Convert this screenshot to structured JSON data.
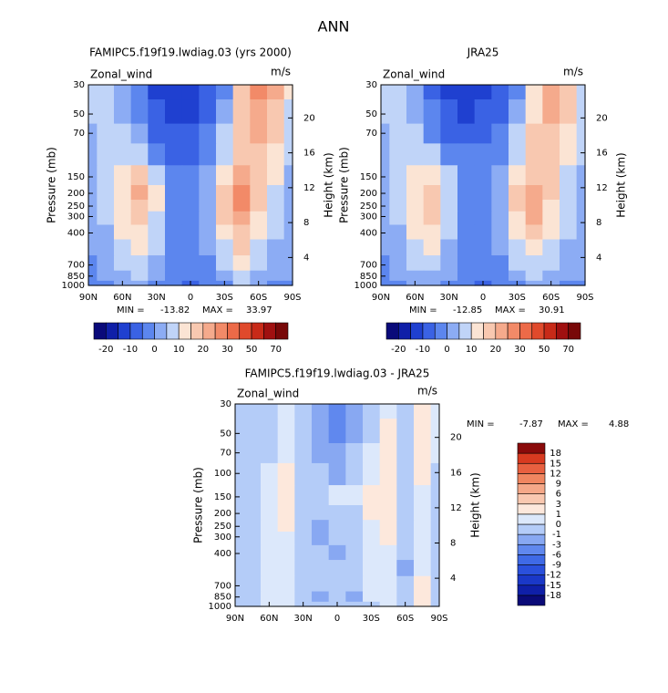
{
  "title": "ANN",
  "chart_data": [
    {
      "type": "contour",
      "title": "FAMIPC5.f19f19.lwdiag.03 (yrs 2000)",
      "left_label": "Zonal_wind",
      "right_label": "m/s",
      "ylabel": "Pressure (mb)",
      "y2label": "Height (km)",
      "min_label": "MIN =",
      "min": -13.82,
      "max_label": "MAX =",
      "max": 33.97,
      "x": [
        90,
        75,
        60,
        45,
        30,
        15,
        0,
        -15,
        -30,
        -45,
        -60,
        -75,
        -90
      ],
      "y": [
        30,
        50,
        70,
        100,
        150,
        200,
        250,
        300,
        400,
        500,
        700,
        850,
        1000
      ],
      "z": [
        [
          5,
          5,
          2,
          -5,
          -12,
          -15,
          -14,
          -10,
          -2,
          15,
          25,
          20,
          10
        ],
        [
          5,
          6,
          3,
          -3,
          -10,
          -12,
          -12,
          -8,
          2,
          15,
          22,
          18,
          8
        ],
        [
          4,
          7,
          5,
          0,
          -6,
          -9,
          -9,
          -5,
          5,
          16,
          20,
          15,
          6
        ],
        [
          3,
          8,
          9,
          6,
          -2,
          -6,
          -6,
          -2,
          8,
          17,
          18,
          12,
          5
        ],
        [
          3,
          8,
          14,
          15,
          5,
          -3,
          -4,
          2,
          14,
          20,
          16,
          10,
          4
        ],
        [
          2,
          7,
          14,
          20,
          10,
          -2,
          -4,
          3,
          18,
          28,
          16,
          8,
          3
        ],
        [
          2,
          6,
          13,
          19,
          10,
          -2,
          -4,
          3,
          17,
          27,
          15,
          7,
          2
        ],
        [
          1,
          5,
          12,
          17,
          9,
          -2,
          -3,
          2,
          15,
          24,
          14,
          6,
          2
        ],
        [
          1,
          4,
          10,
          13,
          7,
          -2,
          -3,
          1,
          12,
          19,
          11,
          5,
          1
        ],
        [
          0,
          3,
          8,
          11,
          5,
          -2,
          -3,
          0,
          9,
          15,
          9,
          4,
          1
        ],
        [
          -1,
          2,
          5,
          7,
          2,
          -2,
          -4,
          -2,
          5,
          10,
          6,
          2,
          0
        ],
        [
          -2,
          1,
          3,
          5,
          0,
          -4,
          -5,
          -4,
          2,
          7,
          4,
          0,
          0
        ],
        [
          -3,
          -1,
          1,
          3,
          -2,
          -5,
          -6,
          -5,
          -1,
          5,
          3,
          -2,
          -2
        ]
      ],
      "xlim": [
        90,
        -90
      ],
      "xticks": [
        {
          "value": 90,
          "label": "90N"
        },
        {
          "value": 60,
          "label": "60N"
        },
        {
          "value": 30,
          "label": "30N"
        },
        0,
        {
          "value": -30,
          "label": "30S"
        },
        {
          "value": -60,
          "label": "60S"
        },
        {
          "value": -90,
          "label": "90S"
        }
      ],
      "ylim": [
        1000,
        30
      ],
      "ylog": true,
      "yticks": [
        30,
        50,
        70,
        150,
        200,
        250,
        300,
        400,
        700,
        850,
        1000
      ],
      "y2lim": [
        0.8,
        23.8
      ],
      "y2ticks": [
        4,
        8,
        12,
        16,
        20
      ],
      "colorbar": {
        "orientation": "horizontal",
        "levels": [
          -20,
          -15,
          -10,
          -5,
          0,
          5,
          10,
          15,
          20,
          25,
          30,
          40,
          50,
          60,
          70
        ],
        "ticks": [
          -20,
          -10,
          0,
          10,
          20,
          30,
          50,
          70
        ],
        "colors": [
          "#0a0a7a",
          "#0f1fa8",
          "#1f40d0",
          "#3a62e4",
          "#5c86ee",
          "#8cacf4",
          "#c0d4f8",
          "#fbe4d4",
          "#f8c8b0",
          "#f5aa8c",
          "#f28a68",
          "#ec6a48",
          "#e04a2c",
          "#c82a18",
          "#a01010",
          "#780808"
        ]
      }
    },
    {
      "type": "contour",
      "title": "JRA25",
      "left_label": "Zonal_wind",
      "right_label": "m/s",
      "ylabel": "Pressure (mb)",
      "y2label": "Height (km)",
      "min_label": "MIN =",
      "min": -12.85,
      "max_label": "MAX =",
      "max": 30.91,
      "x": [
        90,
        75,
        60,
        45,
        30,
        15,
        0,
        -15,
        -30,
        -45,
        -60,
        -75,
        -90
      ],
      "y": [
        30,
        50,
        70,
        100,
        150,
        200,
        250,
        300,
        400,
        500,
        700,
        850,
        1000
      ],
      "z": [
        [
          5,
          5,
          2,
          -6,
          -12,
          -13,
          -11,
          -8,
          -2,
          14,
          23,
          18,
          8
        ],
        [
          5,
          6,
          3,
          -4,
          -10,
          -11,
          -9,
          -6,
          2,
          14,
          21,
          16,
          7
        ],
        [
          4,
          7,
          5,
          -1,
          -6,
          -8,
          -7,
          -4,
          5,
          15,
          19,
          14,
          6
        ],
        [
          3,
          8,
          9,
          5,
          -2,
          -5,
          -5,
          -1,
          8,
          16,
          17,
          11,
          5
        ],
        [
          3,
          8,
          14,
          14,
          5,
          -3,
          -3,
          2,
          13,
          19,
          15,
          9,
          4
        ],
        [
          2,
          7,
          14,
          19,
          9,
          -2,
          -3,
          3,
          17,
          24,
          15,
          7,
          3
        ],
        [
          2,
          6,
          13,
          18,
          9,
          -2,
          -3,
          3,
          16,
          23,
          14,
          6,
          2
        ],
        [
          1,
          5,
          12,
          16,
          8,
          -2,
          -3,
          2,
          14,
          21,
          13,
          6,
          2
        ],
        [
          1,
          4,
          10,
          12,
          6,
          -2,
          -3,
          1,
          11,
          17,
          10,
          5,
          1
        ],
        [
          0,
          3,
          8,
          10,
          4,
          -2,
          -3,
          0,
          8,
          14,
          8,
          4,
          1
        ],
        [
          -1,
          2,
          5,
          6,
          2,
          -2,
          -4,
          -2,
          5,
          9,
          5,
          2,
          0
        ],
        [
          -2,
          1,
          3,
          4,
          0,
          -4,
          -5,
          -4,
          2,
          6,
          4,
          0,
          0
        ],
        [
          -3,
          -1,
          1,
          2,
          -2,
          -5,
          -6,
          -5,
          -1,
          4,
          2,
          -2,
          -2
        ]
      ],
      "xlim": [
        90,
        -90
      ],
      "xticks": [
        {
          "value": 90,
          "label": "90N"
        },
        {
          "value": 60,
          "label": "60N"
        },
        {
          "value": 30,
          "label": "30N"
        },
        0,
        {
          "value": -30,
          "label": "30S"
        },
        {
          "value": -60,
          "label": "60S"
        },
        {
          "value": -90,
          "label": "90S"
        }
      ],
      "ylim": [
        1000,
        30
      ],
      "ylog": true,
      "yticks": [
        30,
        50,
        70,
        150,
        200,
        250,
        300,
        400,
        700,
        850,
        1000
      ],
      "y2lim": [
        0.8,
        23.8
      ],
      "y2ticks": [
        4,
        8,
        12,
        16,
        20
      ],
      "colorbar": {
        "orientation": "horizontal",
        "levels": [
          -20,
          -15,
          -10,
          -5,
          0,
          5,
          10,
          15,
          20,
          25,
          30,
          40,
          50,
          60,
          70
        ],
        "ticks": [
          -20,
          -10,
          0,
          10,
          20,
          30,
          50,
          70
        ],
        "colors": [
          "#0a0a7a",
          "#0f1fa8",
          "#1f40d0",
          "#3a62e4",
          "#5c86ee",
          "#8cacf4",
          "#c0d4f8",
          "#fbe4d4",
          "#f8c8b0",
          "#f5aa8c",
          "#f28a68",
          "#ec6a48",
          "#e04a2c",
          "#c82a18",
          "#a01010",
          "#780808"
        ]
      }
    },
    {
      "type": "contour",
      "title": "FAMIPC5.f19f19.lwdiag.03 - JRA25",
      "left_label": "Zonal_wind",
      "right_label": "m/s",
      "ylabel": "Pressure (mb)",
      "y2label": "Height (km)",
      "min_label": "MIN =",
      "min": -7.87,
      "max_label": "MAX =",
      "max": 4.88,
      "x": [
        90,
        75,
        60,
        45,
        30,
        15,
        0,
        -15,
        -30,
        -45,
        -60,
        -75,
        -90
      ],
      "y": [
        30,
        50,
        70,
        100,
        150,
        200,
        250,
        300,
        400,
        500,
        700,
        850,
        1000
      ],
      "z": [
        [
          -0.5,
          -0.5,
          -0.5,
          0.5,
          -0.5,
          -2,
          -4,
          -2,
          -0.5,
          0.5,
          -0.5,
          2,
          0.5
        ],
        [
          -0.5,
          -0.5,
          -0.5,
          0.5,
          -0.5,
          -2,
          -4,
          -2,
          -0.5,
          2,
          -0.5,
          2,
          0.5
        ],
        [
          -0.5,
          -0.5,
          -0.5,
          0.5,
          -0.5,
          -2,
          -2,
          -0.5,
          0.5,
          2,
          -0.5,
          2,
          0.5
        ],
        [
          -0.5,
          -0.5,
          0.5,
          2,
          -0.5,
          -0.5,
          -2,
          -0.5,
          0.5,
          2,
          -0.5,
          2,
          -0.5
        ],
        [
          -0.5,
          -0.5,
          0.5,
          2,
          -0.5,
          -0.5,
          0.5,
          0.5,
          2,
          2,
          -0.5,
          0.5,
          -0.5
        ],
        [
          -0.5,
          -0.5,
          0.5,
          2,
          -0.5,
          -0.5,
          -0.5,
          -0.5,
          2,
          2,
          -0.5,
          0.5,
          -0.5
        ],
        [
          -0.5,
          -0.5,
          0.5,
          2,
          -0.5,
          -2,
          -0.5,
          -0.5,
          0.5,
          2,
          -0.5,
          0.5,
          -0.5
        ],
        [
          -0.5,
          -0.5,
          0.5,
          0.5,
          -0.5,
          -2,
          -0.5,
          -0.5,
          0.5,
          2,
          -0.5,
          0.5,
          -0.5
        ],
        [
          -0.5,
          -0.5,
          0.5,
          0.5,
          -0.5,
          -0.5,
          -2,
          -0.5,
          0.5,
          0.5,
          -0.5,
          0.5,
          -0.5
        ],
        [
          -0.5,
          -0.5,
          0.5,
          0.5,
          -0.5,
          -0.5,
          -0.5,
          -0.5,
          0.5,
          0.5,
          -2,
          0.5,
          -0.5
        ],
        [
          -0.5,
          -0.5,
          0.5,
          0.5,
          -0.5,
          -0.5,
          -0.5,
          -0.5,
          0.5,
          0.5,
          -0.5,
          2,
          -0.5
        ],
        [
          -0.5,
          -0.5,
          0.5,
          0.5,
          -0.5,
          -2,
          -0.5,
          -2,
          0.5,
          0.5,
          -0.5,
          2,
          -0.5
        ],
        [
          -0.5,
          -0.5,
          0.5,
          0.5,
          -0.5,
          -0.5,
          -0.5,
          -0.5,
          -0.5,
          0.5,
          -0.5,
          2,
          -0.5
        ]
      ],
      "xlim": [
        90,
        -90
      ],
      "xticks": [
        {
          "value": 90,
          "label": "90N"
        },
        {
          "value": 60,
          "label": "60N"
        },
        {
          "value": 30,
          "label": "30N"
        },
        0,
        {
          "value": -30,
          "label": "30S"
        },
        {
          "value": -60,
          "label": "60S"
        },
        {
          "value": -90,
          "label": "90S"
        }
      ],
      "ylim": [
        1000,
        30
      ],
      "ylog": true,
      "yticks": [
        30,
        50,
        70,
        100,
        150,
        200,
        250,
        300,
        400,
        700,
        850,
        1000
      ],
      "y2lim": [
        0.8,
        23.8
      ],
      "y2ticks": [
        4,
        8,
        12,
        16,
        20
      ],
      "colorbar": {
        "orientation": "vertical",
        "levels": [
          -18,
          -15,
          -12,
          -9,
          -6,
          -3,
          -1,
          0,
          1,
          3,
          6,
          9,
          12,
          15,
          18
        ],
        "ticks": [
          -18,
          -15,
          -12,
          -9,
          -6,
          -3,
          -1,
          0,
          1,
          3,
          6,
          9,
          12,
          15,
          18
        ],
        "colors": [
          "#0a0a78",
          "#0f1fa8",
          "#1a38c8",
          "#2a50dc",
          "#3f6ae6",
          "#6088ee",
          "#88a8f2",
          "#b4ccf8",
          "#dce8fb",
          "#fde8dc",
          "#f9c8b0",
          "#f5a888",
          "#f08660",
          "#e86040",
          "#d83a20",
          "#8a0a0a"
        ]
      }
    }
  ]
}
